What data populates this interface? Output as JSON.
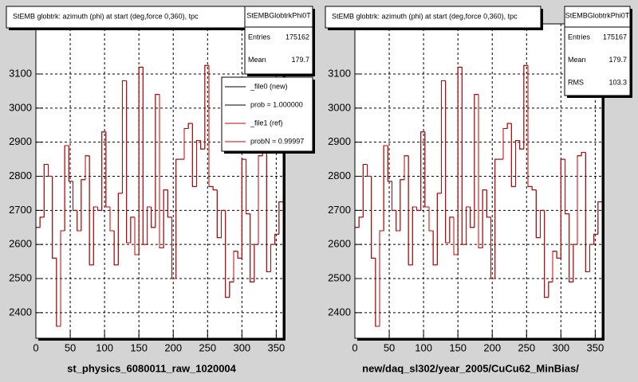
{
  "chart_data": [
    {
      "type": "histogram",
      "title": "StEMB globtrk: azimuth (phi) at start (deg,force 0,360), tpc",
      "x_label": "st_physics_6080011_raw_1020004",
      "bins": [
        0,
        6,
        12,
        18,
        24,
        30,
        36,
        42,
        48,
        54,
        60,
        66,
        72,
        78,
        84,
        90,
        96,
        102,
        108,
        114,
        120,
        126,
        132,
        138,
        144,
        150,
        156,
        162,
        168,
        174,
        180,
        186,
        192,
        198,
        204,
        210,
        216,
        222,
        228,
        234,
        240,
        246,
        252,
        258,
        264,
        270,
        276,
        282,
        288,
        294,
        300,
        306,
        312,
        318,
        324,
        330,
        336,
        342,
        348,
        354,
        360
      ],
      "series": [
        {
          "name": "_file0 (new)",
          "color": "#000000",
          "values": [
            2650,
            2680,
            2835,
            2800,
            2560,
            2360,
            2640,
            2890,
            2785,
            2700,
            2640,
            2790,
            2860,
            2540,
            2710,
            2700,
            2930,
            2710,
            2640,
            2540,
            2750,
            3080,
            2605,
            2680,
            2570,
            3120,
            2600,
            2710,
            2650,
            3040,
            2590,
            2760,
            2680,
            2500,
            2850,
            2850,
            2940,
            2955,
            2770,
            2905,
            2880,
            3125,
            2770,
            2760,
            2620,
            2700,
            2445,
            2490,
            2580,
            2560,
            2850,
            2690,
            2490,
            2600,
            2860,
            2870,
            2520,
            2600,
            2630,
            2725
          ]
        },
        {
          "name": "_file1 (ref)",
          "color": "#cc0000",
          "values": [
            2650,
            2680,
            2835,
            2800,
            2560,
            2360,
            2640,
            2890,
            2785,
            2700,
            2640,
            2790,
            2860,
            2540,
            2710,
            2700,
            2930,
            2710,
            2640,
            2540,
            2750,
            3080,
            2605,
            2680,
            2570,
            3120,
            2600,
            2710,
            2650,
            3040,
            2590,
            2760,
            2680,
            2500,
            2850,
            2850,
            2940,
            2955,
            2770,
            2905,
            2880,
            3125,
            2770,
            2760,
            2620,
            2700,
            2445,
            2490,
            2580,
            2560,
            2850,
            2690,
            2490,
            2600,
            2860,
            2870,
            2520,
            2600,
            2630,
            2725
          ]
        }
      ],
      "legend_notes": [
        "prob = 1.000000",
        "probN = 0.99997"
      ],
      "stats": {
        "title": "StEMBGlobtrkPhi0T",
        "rows": [
          {
            "label": "Entries",
            "value": 175162
          },
          {
            "label": "Mean",
            "value": 179.7
          }
        ]
      },
      "xlim": [
        0,
        360
      ],
      "xticks": [
        0,
        50,
        100,
        150,
        200,
        250,
        300,
        350
      ],
      "ylim": [
        2325,
        3247
      ],
      "yticks": [
        2400,
        2500,
        2600,
        2700,
        2800,
        2900,
        3000,
        3100
      ],
      "grid": true
    },
    {
      "type": "histogram",
      "title": "StEMB globtrk: azimuth (phi) at start (deg,force 0,360), tpc",
      "x_label": "new/daq_sl302/year_2005/CuCu62_MinBias/",
      "bins": [
        0,
        6,
        12,
        18,
        24,
        30,
        36,
        42,
        48,
        54,
        60,
        66,
        72,
        78,
        84,
        90,
        96,
        102,
        108,
        114,
        120,
        126,
        132,
        138,
        144,
        150,
        156,
        162,
        168,
        174,
        180,
        186,
        192,
        198,
        204,
        210,
        216,
        222,
        228,
        234,
        240,
        246,
        252,
        258,
        264,
        270,
        276,
        282,
        288,
        294,
        300,
        306,
        312,
        318,
        324,
        330,
        336,
        342,
        348,
        354,
        360
      ],
      "series": [
        {
          "color": "#000000",
          "values": [
            2650,
            2680,
            2835,
            2800,
            2560,
            2360,
            2640,
            2890,
            2785,
            2700,
            2640,
            2790,
            2860,
            2540,
            2710,
            2700,
            2930,
            2710,
            2640,
            2540,
            2750,
            3080,
            2605,
            2680,
            2570,
            3120,
            2600,
            2710,
            2650,
            3040,
            2590,
            2760,
            2680,
            2500,
            2850,
            2850,
            2940,
            2955,
            2770,
            2905,
            2880,
            3125,
            2770,
            2760,
            2620,
            2700,
            2445,
            2490,
            2580,
            2560,
            2850,
            2690,
            2490,
            2600,
            2860,
            2870,
            2520,
            2600,
            2630,
            2725
          ]
        },
        {
          "color": "#cc0000",
          "values": [
            2650,
            2680,
            2835,
            2800,
            2560,
            2360,
            2640,
            2890,
            2785,
            2700,
            2640,
            2790,
            2860,
            2540,
            2710,
            2700,
            2930,
            2710,
            2640,
            2540,
            2750,
            3080,
            2605,
            2680,
            2570,
            3120,
            2600,
            2710,
            2650,
            3040,
            2590,
            2760,
            2680,
            2500,
            2850,
            2850,
            2940,
            2955,
            2770,
            2905,
            2880,
            3125,
            2770,
            2760,
            2620,
            2700,
            2445,
            2490,
            2580,
            2560,
            2850,
            2690,
            2490,
            2600,
            2860,
            2870,
            2520,
            2600,
            2630,
            2725
          ]
        }
      ],
      "stats": {
        "title": "StEMBGlobtrkPhi0T",
        "rows": [
          {
            "label": "Entries",
            "value": 175167
          },
          {
            "label": "Mean",
            "value": 179.7
          },
          {
            "label": "RMS",
            "value": 103.3
          }
        ]
      },
      "xlim": [
        0,
        360
      ],
      "xticks": [
        0,
        50,
        100,
        150,
        200,
        250,
        300,
        350
      ],
      "ylim": [
        2325,
        3247
      ],
      "yticks": [
        2400,
        2500,
        2600,
        2700,
        2800,
        2900,
        3000,
        3100
      ],
      "grid": true
    }
  ]
}
